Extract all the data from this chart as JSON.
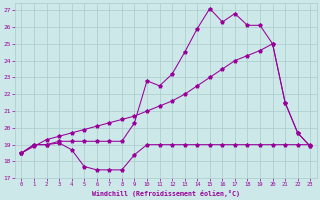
{
  "xlabel": "Windchill (Refroidissement éolien,°C)",
  "bg_color": "#cce8e8",
  "grid_color": "#aacccc",
  "line_color": "#990099",
  "xlim": [
    -0.5,
    23.5
  ],
  "ylim": [
    17,
    27.4
  ],
  "xticks": [
    0,
    1,
    2,
    3,
    4,
    5,
    6,
    7,
    8,
    9,
    10,
    11,
    12,
    13,
    14,
    15,
    16,
    17,
    18,
    19,
    20,
    21,
    22,
    23
  ],
  "yticks": [
    17,
    18,
    19,
    20,
    21,
    22,
    23,
    24,
    25,
    26,
    27
  ],
  "series1_x": [
    0,
    1,
    2,
    3,
    4,
    5,
    6,
    7,
    8,
    9,
    10,
    11,
    12,
    13,
    14,
    15,
    16,
    17,
    18,
    19,
    20,
    21,
    22,
    23
  ],
  "series1_y": [
    18.5,
    19.0,
    19.0,
    19.1,
    18.7,
    17.7,
    17.5,
    17.5,
    17.5,
    18.4,
    19.0,
    19.0,
    19.0,
    19.0,
    19.0,
    19.0,
    19.0,
    19.0,
    19.0,
    19.0,
    19.0,
    19.0,
    19.0,
    19.0
  ],
  "series2_x": [
    0,
    1,
    2,
    3,
    4,
    5,
    6,
    7,
    8,
    9,
    10,
    11,
    12,
    13,
    14,
    15,
    16,
    17,
    18,
    19,
    20,
    21,
    22,
    23
  ],
  "series2_y": [
    18.5,
    19.0,
    19.0,
    19.2,
    19.2,
    19.2,
    19.2,
    19.2,
    19.2,
    20.3,
    22.8,
    22.5,
    23.2,
    24.5,
    25.9,
    27.1,
    26.3,
    26.8,
    26.1,
    26.1,
    25.0,
    21.5,
    19.7,
    18.9
  ],
  "series3_x": [
    0,
    1,
    2,
    3,
    4,
    5,
    6,
    7,
    8,
    9,
    10,
    11,
    12,
    13,
    14,
    15,
    16,
    17,
    18,
    19,
    20,
    21,
    22,
    23
  ],
  "series3_y": [
    18.5,
    18.9,
    19.3,
    19.5,
    19.7,
    19.9,
    20.1,
    20.3,
    20.5,
    20.7,
    21.0,
    21.3,
    21.6,
    22.0,
    22.5,
    23.0,
    23.5,
    24.0,
    24.3,
    24.6,
    25.0,
    21.5,
    19.7,
    18.9
  ]
}
